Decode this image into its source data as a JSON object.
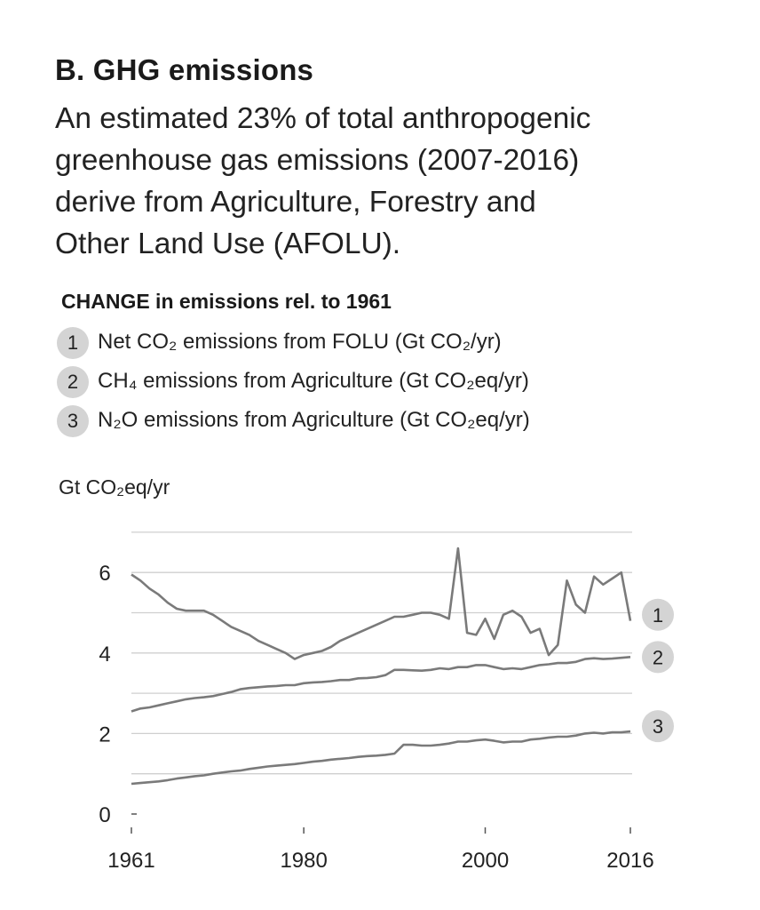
{
  "panel": {
    "heading": "B. GHG emissions",
    "description_lines": [
      "An estimated 23% of total anthropogenic",
      "greenhouse gas emissions (2007-2016)",
      "derive from Agriculture, Forestry and",
      "Other Land Use (AFOLU)."
    ],
    "subtitle": "CHANGE in emissions rel. to 1961",
    "legend": [
      {
        "badge": "1",
        "label": "Net CO₂ emissions from FOLU (Gt CO₂/yr)"
      },
      {
        "badge": "2",
        "label": "CH₄ emissions from Agriculture (Gt CO₂eq/yr)"
      },
      {
        "badge": "3",
        "label": "N₂O emissions from Agriculture (Gt CO₂eq/yr)"
      }
    ],
    "unit_label": "Gt CO₂eq/yr"
  },
  "colors": {
    "line": "#7a7a7a",
    "grid": "#cfcfcf",
    "badge": "#d4d4d4",
    "text": "#222222"
  },
  "chart_data": {
    "type": "line",
    "ylabel": "Gt CO₂eq/yr",
    "xlim": [
      1961,
      2016
    ],
    "ylim": [
      0,
      7
    ],
    "y_ticks": [
      0,
      2,
      4,
      6
    ],
    "x_ticks": [
      1961,
      1980,
      2000,
      2016
    ],
    "grid": true,
    "series": [
      {
        "name": "1",
        "x": [
          1961,
          1962,
          1963,
          1964,
          1965,
          1966,
          1967,
          1968,
          1969,
          1970,
          1971,
          1972,
          1973,
          1974,
          1975,
          1976,
          1977,
          1978,
          1979,
          1980,
          1981,
          1982,
          1983,
          1984,
          1985,
          1986,
          1987,
          1988,
          1989,
          1990,
          1991,
          1992,
          1993,
          1994,
          1995,
          1996,
          1997,
          1998,
          1999,
          2000,
          2001,
          2002,
          2003,
          2004,
          2005,
          2006,
          2007,
          2008,
          2009,
          2010,
          2011,
          2012,
          2013,
          2014,
          2015,
          2016
        ],
        "values": [
          5.95,
          5.8,
          5.6,
          5.45,
          5.25,
          5.1,
          5.05,
          5.05,
          5.05,
          4.95,
          4.8,
          4.65,
          4.55,
          4.45,
          4.3,
          4.2,
          4.1,
          4.0,
          3.85,
          3.95,
          4.0,
          4.05,
          4.15,
          4.3,
          4.4,
          4.5,
          4.6,
          4.7,
          4.8,
          4.9,
          4.9,
          4.95,
          5.0,
          5.0,
          4.95,
          4.85,
          6.6,
          4.5,
          4.45,
          4.85,
          4.35,
          4.95,
          5.05,
          4.9,
          4.5,
          4.6,
          3.95,
          4.2,
          5.8,
          5.2,
          5.0,
          5.9,
          5.7,
          5.85,
          6.0,
          4.8
        ]
      },
      {
        "name": "2",
        "x": [
          1961,
          1962,
          1963,
          1964,
          1965,
          1966,
          1967,
          1968,
          1969,
          1970,
          1971,
          1972,
          1973,
          1974,
          1975,
          1976,
          1977,
          1978,
          1979,
          1980,
          1981,
          1982,
          1983,
          1984,
          1985,
          1986,
          1987,
          1988,
          1989,
          1990,
          1991,
          1992,
          1993,
          1994,
          1995,
          1996,
          1997,
          1998,
          1999,
          2000,
          2001,
          2002,
          2003,
          2004,
          2005,
          2006,
          2007,
          2008,
          2009,
          2010,
          2011,
          2012,
          2013,
          2014,
          2015,
          2016
        ],
        "values": [
          2.55,
          2.62,
          2.65,
          2.7,
          2.75,
          2.8,
          2.85,
          2.88,
          2.9,
          2.93,
          2.98,
          3.03,
          3.1,
          3.13,
          3.15,
          3.17,
          3.18,
          3.2,
          3.2,
          3.25,
          3.27,
          3.28,
          3.3,
          3.33,
          3.33,
          3.37,
          3.38,
          3.4,
          3.45,
          3.58,
          3.58,
          3.57,
          3.56,
          3.58,
          3.62,
          3.6,
          3.65,
          3.65,
          3.7,
          3.7,
          3.65,
          3.6,
          3.62,
          3.6,
          3.65,
          3.7,
          3.72,
          3.75,
          3.75,
          3.78,
          3.85,
          3.87,
          3.85,
          3.86,
          3.88,
          3.9
        ]
      },
      {
        "name": "3",
        "x": [
          1961,
          1962,
          1963,
          1964,
          1965,
          1966,
          1967,
          1968,
          1969,
          1970,
          1971,
          1972,
          1973,
          1974,
          1975,
          1976,
          1977,
          1978,
          1979,
          1980,
          1981,
          1982,
          1983,
          1984,
          1985,
          1986,
          1987,
          1988,
          1989,
          1990,
          1991,
          1992,
          1993,
          1994,
          1995,
          1996,
          1997,
          1998,
          1999,
          2000,
          2001,
          2002,
          2003,
          2004,
          2005,
          2006,
          2007,
          2008,
          2009,
          2010,
          2011,
          2012,
          2013,
          2014,
          2015,
          2016
        ],
        "values": [
          0.75,
          0.77,
          0.79,
          0.81,
          0.84,
          0.88,
          0.91,
          0.94,
          0.96,
          1.0,
          1.03,
          1.06,
          1.08,
          1.12,
          1.15,
          1.18,
          1.2,
          1.22,
          1.24,
          1.27,
          1.3,
          1.32,
          1.35,
          1.37,
          1.39,
          1.42,
          1.44,
          1.45,
          1.47,
          1.5,
          1.72,
          1.72,
          1.7,
          1.7,
          1.72,
          1.75,
          1.8,
          1.8,
          1.83,
          1.85,
          1.82,
          1.78,
          1.8,
          1.8,
          1.85,
          1.87,
          1.9,
          1.92,
          1.92,
          1.95,
          2.0,
          2.02,
          2.0,
          2.03,
          2.03,
          2.05
        ]
      }
    ]
  }
}
